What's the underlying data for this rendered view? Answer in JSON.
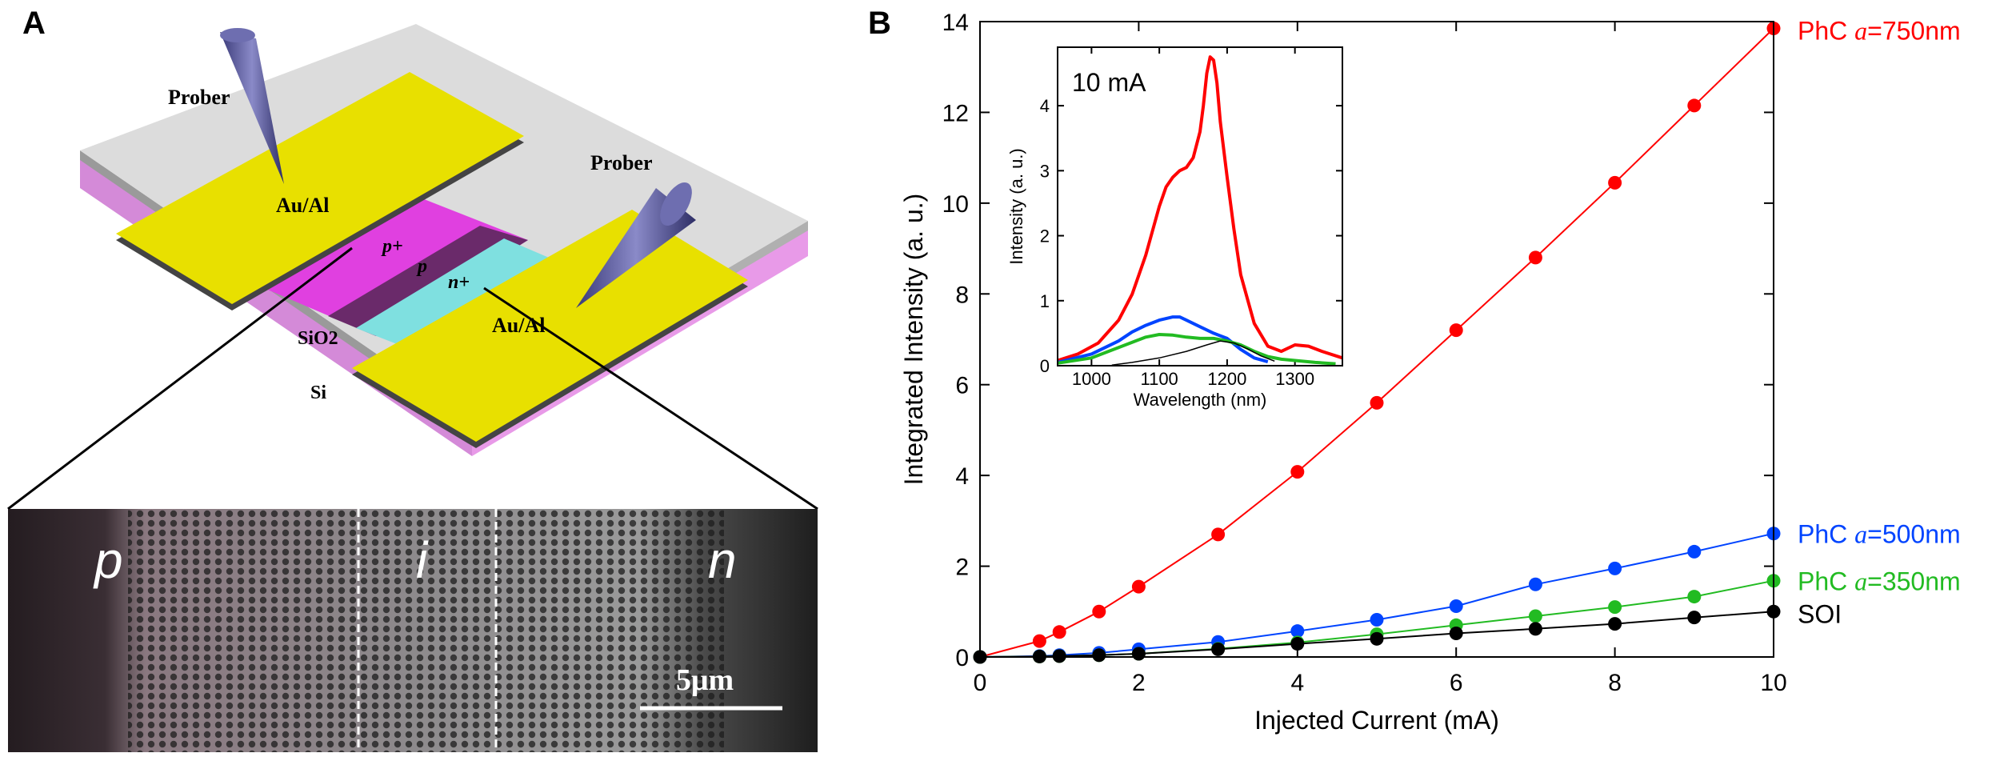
{
  "panel_a": {
    "label": "A",
    "device_labels": {
      "prober_left": "Prober",
      "prober_right": "Prober",
      "electrode_left": "Au/Al",
      "electrode_right": "Au/Al",
      "p_plus": "p+",
      "p": "p",
      "n_plus": "n+",
      "sio2": "SiO2",
      "si": "Si"
    },
    "micrograph": {
      "regions": [
        "p",
        "i",
        "n"
      ],
      "scale_bar": "5μm"
    }
  },
  "panel_b": {
    "label": "B"
  },
  "chart_data": [
    {
      "type": "line",
      "title": "",
      "xlabel": "Injected Current (mA)",
      "ylabel": "Integrated Intensity (a. u.)",
      "xlim": [
        0,
        10
      ],
      "ylim": [
        0,
        14
      ],
      "xticks": [
        0,
        2,
        4,
        6,
        8,
        10
      ],
      "yticks": [
        0,
        2,
        4,
        6,
        8,
        10,
        12,
        14
      ],
      "legend": "right",
      "series": [
        {
          "name": "PhC a=750nm",
          "prefix": "PhC ",
          "var": "a",
          "suffix": "=750nm",
          "color": "#ff0000",
          "x": [
            0,
            0.75,
            1,
            1.5,
            2,
            3,
            4,
            5,
            6,
            7,
            8,
            9,
            10
          ],
          "y": [
            0.0,
            0.35,
            0.55,
            1.0,
            1.55,
            2.7,
            4.08,
            5.6,
            7.2,
            8.8,
            10.45,
            12.15,
            13.85
          ]
        },
        {
          "name": "PhC a=500nm",
          "prefix": "PhC ",
          "var": "a",
          "suffix": "=500nm",
          "color": "#0044ff",
          "x": [
            0,
            0.75,
            1,
            1.5,
            2,
            3,
            4,
            5,
            6,
            7,
            8,
            9,
            10
          ],
          "y": [
            0.0,
            0.02,
            0.04,
            0.09,
            0.17,
            0.33,
            0.57,
            0.82,
            1.12,
            1.6,
            1.95,
            2.32,
            2.72
          ]
        },
        {
          "name": "PhC a=350nm",
          "prefix": "PhC ",
          "var": "a",
          "suffix": "=350nm",
          "color": "#22bb22",
          "x": [
            0,
            0.75,
            1,
            1.5,
            2,
            3,
            4,
            5,
            6,
            7,
            8,
            9,
            10
          ],
          "y": [
            0.0,
            0.01,
            0.02,
            0.04,
            0.07,
            0.18,
            0.32,
            0.5,
            0.7,
            0.9,
            1.1,
            1.33,
            1.68
          ]
        },
        {
          "name": "SOI",
          "prefix": "SOI",
          "var": "",
          "suffix": "",
          "color": "#000000",
          "x": [
            0,
            0.75,
            1,
            1.5,
            2,
            3,
            4,
            5,
            6,
            7,
            8,
            9,
            10
          ],
          "y": [
            0.0,
            0.01,
            0.02,
            0.04,
            0.07,
            0.17,
            0.29,
            0.4,
            0.52,
            0.62,
            0.73,
            0.87,
            1.0
          ]
        }
      ]
    },
    {
      "type": "line",
      "title": "10 mA",
      "xlabel": "Wavelength (nm)",
      "ylabel": "Intensity (a. u.)",
      "xlim": [
        950,
        1370
      ],
      "ylim": [
        0,
        4.9
      ],
      "xticks": [
        1000,
        1100,
        1200,
        1300
      ],
      "yticks": [
        0,
        1,
        2,
        3,
        4
      ],
      "series": [
        {
          "name": "PhC a=750nm",
          "color": "#ff0000",
          "x": [
            950,
            980,
            1010,
            1040,
            1060,
            1080,
            1100,
            1110,
            1120,
            1130,
            1140,
            1150,
            1160,
            1165,
            1170,
            1175,
            1180,
            1185,
            1190,
            1200,
            1210,
            1220,
            1240,
            1260,
            1280,
            1300,
            1320,
            1340,
            1370
          ],
          "y": [
            0.08,
            0.18,
            0.35,
            0.7,
            1.1,
            1.7,
            2.45,
            2.75,
            2.9,
            3.0,
            3.05,
            3.2,
            3.6,
            4.0,
            4.5,
            4.75,
            4.7,
            4.35,
            3.75,
            2.9,
            2.1,
            1.4,
            0.65,
            0.3,
            0.22,
            0.32,
            0.3,
            0.22,
            0.12
          ]
        },
        {
          "name": "PhC a=500nm",
          "color": "#0044ff",
          "x": [
            950,
            1000,
            1040,
            1060,
            1080,
            1100,
            1120,
            1130,
            1140,
            1160,
            1180,
            1200,
            1220,
            1240,
            1260
          ],
          "y": [
            0.05,
            0.18,
            0.38,
            0.52,
            0.62,
            0.7,
            0.75,
            0.75,
            0.7,
            0.6,
            0.5,
            0.42,
            0.25,
            0.12,
            0.06
          ]
        },
        {
          "name": "PhC a=350nm",
          "color": "#22bb22",
          "x": [
            950,
            1000,
            1040,
            1080,
            1100,
            1120,
            1140,
            1160,
            1180,
            1200,
            1220,
            1240,
            1260,
            1280,
            1300,
            1330,
            1360
          ],
          "y": [
            0.04,
            0.12,
            0.28,
            0.44,
            0.48,
            0.47,
            0.44,
            0.42,
            0.42,
            0.38,
            0.32,
            0.22,
            0.14,
            0.1,
            0.08,
            0.05,
            0.03
          ]
        },
        {
          "name": "SOI",
          "color": "#000000",
          "x": [
            1030,
            1060,
            1100,
            1140,
            1170,
            1190,
            1210,
            1230,
            1250,
            1270
          ],
          "y": [
            0.01,
            0.05,
            0.12,
            0.22,
            0.32,
            0.38,
            0.35,
            0.26,
            0.15,
            0.07
          ]
        }
      ]
    }
  ]
}
